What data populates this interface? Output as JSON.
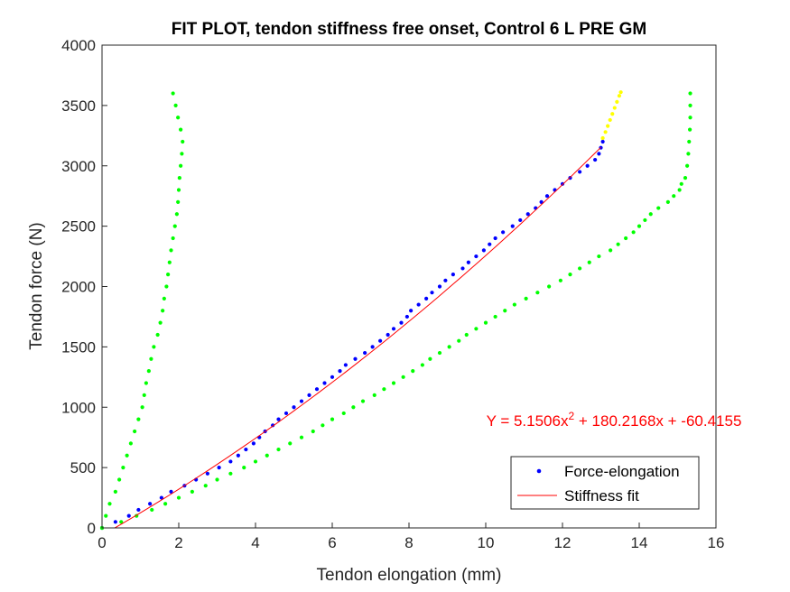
{
  "chart_data": {
    "type": "scatter",
    "title": "FIT PLOT, tendon stiffness free onset, Control 6 L PRE GM",
    "xlabel": "Tendon elongation (mm)",
    "ylabel": "Tendon force (N)",
    "xlim": [
      0,
      16
    ],
    "ylim": [
      0,
      4000
    ],
    "xticks": [
      "0",
      "2",
      "4",
      "6",
      "8",
      "10",
      "12",
      "14",
      "16"
    ],
    "yticks": [
      "0",
      "500",
      "1000",
      "1500",
      "2000",
      "2500",
      "3000",
      "3500",
      "4000"
    ],
    "grid": false,
    "legend_position": "bottom-right",
    "equation": {
      "prefix": "Y = 5.1506x",
      "exponent": "2",
      "suffix": " + 180.2168x + -60.4155",
      "color": "#ff0000"
    },
    "fit": {
      "a": 5.1506,
      "b": 180.2168,
      "c": -60.4155,
      "x_range": [
        0.33,
        13.0
      ]
    },
    "colors": {
      "blue": "#0000ff",
      "green": "#00ff00",
      "yellow": "#ffff00",
      "red": "#ff0000"
    },
    "series": [
      {
        "name": "Force-elongation",
        "color": "#0000ff",
        "points": [
          [
            0.0,
            0
          ],
          [
            0.35,
            50
          ],
          [
            0.7,
            100
          ],
          [
            0.95,
            150
          ],
          [
            1.25,
            200
          ],
          [
            1.55,
            250
          ],
          [
            1.8,
            300
          ],
          [
            2.15,
            350
          ],
          [
            2.45,
            400
          ],
          [
            2.75,
            450
          ],
          [
            3.05,
            500
          ],
          [
            3.35,
            550
          ],
          [
            3.55,
            600
          ],
          [
            3.75,
            650
          ],
          [
            3.95,
            700
          ],
          [
            4.1,
            750
          ],
          [
            4.25,
            800
          ],
          [
            4.45,
            850
          ],
          [
            4.6,
            900
          ],
          [
            4.8,
            950
          ],
          [
            5.0,
            1000
          ],
          [
            5.2,
            1050
          ],
          [
            5.4,
            1100
          ],
          [
            5.6,
            1150
          ],
          [
            5.8,
            1200
          ],
          [
            6.0,
            1250
          ],
          [
            6.2,
            1300
          ],
          [
            6.35,
            1350
          ],
          [
            6.6,
            1400
          ],
          [
            6.85,
            1450
          ],
          [
            7.05,
            1500
          ],
          [
            7.25,
            1550
          ],
          [
            7.45,
            1600
          ],
          [
            7.6,
            1650
          ],
          [
            7.8,
            1700
          ],
          [
            7.95,
            1750
          ],
          [
            8.05,
            1800
          ],
          [
            8.25,
            1850
          ],
          [
            8.45,
            1900
          ],
          [
            8.6,
            1950
          ],
          [
            8.8,
            2000
          ],
          [
            8.95,
            2050
          ],
          [
            9.15,
            2100
          ],
          [
            9.4,
            2150
          ],
          [
            9.55,
            2200
          ],
          [
            9.75,
            2250
          ],
          [
            9.95,
            2300
          ],
          [
            10.1,
            2350
          ],
          [
            10.25,
            2400
          ],
          [
            10.45,
            2450
          ],
          [
            10.7,
            2500
          ],
          [
            10.9,
            2550
          ],
          [
            11.1,
            2600
          ],
          [
            11.3,
            2650
          ],
          [
            11.45,
            2700
          ],
          [
            11.6,
            2750
          ],
          [
            11.8,
            2800
          ],
          [
            12.0,
            2850
          ],
          [
            12.2,
            2900
          ],
          [
            12.45,
            2950
          ],
          [
            12.65,
            3000
          ],
          [
            12.85,
            3050
          ],
          [
            12.95,
            3100
          ],
          [
            13.0,
            3150
          ],
          [
            13.05,
            3200
          ]
        ]
      },
      {
        "name": "",
        "color": "#ffff00",
        "points": [
          [
            13.05,
            3230
          ],
          [
            13.12,
            3280
          ],
          [
            13.18,
            3330
          ],
          [
            13.24,
            3380
          ],
          [
            13.3,
            3430
          ],
          [
            13.36,
            3480
          ],
          [
            13.42,
            3530
          ],
          [
            13.48,
            3580
          ],
          [
            13.52,
            3610
          ]
        ]
      },
      {
        "name": "",
        "color": "#00ff00",
        "points": [
          [
            0.0,
            0
          ],
          [
            0.1,
            100
          ],
          [
            0.2,
            200
          ],
          [
            0.35,
            300
          ],
          [
            0.45,
            400
          ],
          [
            0.55,
            500
          ],
          [
            0.65,
            600
          ],
          [
            0.75,
            700
          ],
          [
            0.85,
            800
          ],
          [
            0.95,
            900
          ],
          [
            1.05,
            1000
          ],
          [
            1.1,
            1100
          ],
          [
            1.15,
            1200
          ],
          [
            1.22,
            1300
          ],
          [
            1.28,
            1400
          ],
          [
            1.35,
            1500
          ],
          [
            1.45,
            1600
          ],
          [
            1.52,
            1700
          ],
          [
            1.58,
            1800
          ],
          [
            1.62,
            1900
          ],
          [
            1.68,
            2000
          ],
          [
            1.72,
            2100
          ],
          [
            1.76,
            2200
          ],
          [
            1.8,
            2300
          ],
          [
            1.85,
            2400
          ],
          [
            1.9,
            2500
          ],
          [
            1.95,
            2600
          ],
          [
            1.98,
            2700
          ],
          [
            2.0,
            2800
          ],
          [
            2.02,
            2900
          ],
          [
            2.05,
            3000
          ],
          [
            2.08,
            3100
          ],
          [
            2.1,
            3200
          ],
          [
            2.05,
            3300
          ],
          [
            1.98,
            3400
          ],
          [
            1.92,
            3500
          ],
          [
            1.85,
            3600
          ]
        ]
      },
      {
        "name": "",
        "color": "#00ff00",
        "points": [
          [
            0.0,
            0
          ],
          [
            0.5,
            50
          ],
          [
            0.9,
            100
          ],
          [
            1.3,
            150
          ],
          [
            1.65,
            200
          ],
          [
            2.0,
            250
          ],
          [
            2.35,
            300
          ],
          [
            2.7,
            350
          ],
          [
            3.0,
            400
          ],
          [
            3.35,
            450
          ],
          [
            3.7,
            500
          ],
          [
            4.0,
            550
          ],
          [
            4.3,
            600
          ],
          [
            4.6,
            650
          ],
          [
            4.9,
            700
          ],
          [
            5.2,
            750
          ],
          [
            5.5,
            800
          ],
          [
            5.75,
            850
          ],
          [
            6.0,
            900
          ],
          [
            6.3,
            950
          ],
          [
            6.55,
            1000
          ],
          [
            6.8,
            1050
          ],
          [
            7.1,
            1100
          ],
          [
            7.35,
            1150
          ],
          [
            7.6,
            1200
          ],
          [
            7.85,
            1250
          ],
          [
            8.1,
            1300
          ],
          [
            8.35,
            1350
          ],
          [
            8.55,
            1400
          ],
          [
            8.8,
            1450
          ],
          [
            9.05,
            1500
          ],
          [
            9.3,
            1550
          ],
          [
            9.5,
            1600
          ],
          [
            9.75,
            1650
          ],
          [
            10.0,
            1700
          ],
          [
            10.25,
            1750
          ],
          [
            10.5,
            1800
          ],
          [
            10.75,
            1850
          ],
          [
            11.05,
            1900
          ],
          [
            11.35,
            1950
          ],
          [
            11.65,
            2000
          ],
          [
            11.95,
            2050
          ],
          [
            12.2,
            2100
          ],
          [
            12.45,
            2150
          ],
          [
            12.7,
            2200
          ],
          [
            12.95,
            2250
          ],
          [
            13.25,
            2300
          ],
          [
            13.45,
            2350
          ],
          [
            13.65,
            2400
          ],
          [
            13.85,
            2450
          ],
          [
            14.0,
            2500
          ],
          [
            14.15,
            2550
          ],
          [
            14.3,
            2600
          ],
          [
            14.5,
            2650
          ],
          [
            14.75,
            2700
          ],
          [
            14.9,
            2750
          ],
          [
            15.05,
            2800
          ],
          [
            15.1,
            2850
          ],
          [
            15.2,
            2900
          ],
          [
            15.25,
            3000
          ],
          [
            15.28,
            3100
          ],
          [
            15.3,
            3200
          ],
          [
            15.32,
            3300
          ],
          [
            15.33,
            3400
          ],
          [
            15.33,
            3500
          ],
          [
            15.33,
            3600
          ]
        ]
      }
    ],
    "legend": [
      {
        "label": "Force-elongation",
        "marker": "dot",
        "color": "#0000ff"
      },
      {
        "label": "Stiffness fit",
        "marker": "line",
        "color": "#ff0000"
      }
    ]
  }
}
